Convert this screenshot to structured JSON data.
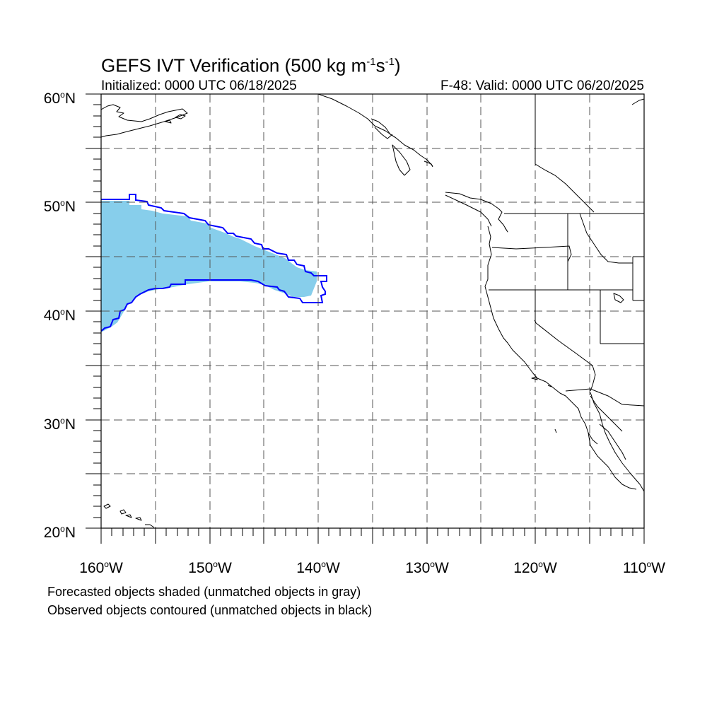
{
  "header": {
    "title_main": "GEFS IVT Verification (500 kg m",
    "title_exp1": "-1",
    "title_mid": "s",
    "title_exp2": "-1",
    "title_end": ")",
    "initialized": "Initialized: 0000 UTC 06/18/2025",
    "valid": "F-48: Valid: 0000 UTC 06/20/2025"
  },
  "axes": {
    "lat_labels": [
      {
        "num": "60",
        "hemi": "N"
      },
      {
        "num": "50",
        "hemi": "N"
      },
      {
        "num": "40",
        "hemi": "N"
      },
      {
        "num": "30",
        "hemi": "N"
      },
      {
        "num": "20",
        "hemi": "N"
      }
    ],
    "lon_labels": [
      {
        "num": "160",
        "hemi": "W"
      },
      {
        "num": "150",
        "hemi": "W"
      },
      {
        "num": "140",
        "hemi": "W"
      },
      {
        "num": "130",
        "hemi": "W"
      },
      {
        "num": "120",
        "hemi": "W"
      },
      {
        "num": "110",
        "hemi": "W"
      }
    ],
    "degree_symbol": "o"
  },
  "map": {
    "lon_range": [
      -160,
      -110
    ],
    "lat_range": [
      20,
      60
    ],
    "grid_style": "dashed",
    "forecast_fill_color": "#87CEEB",
    "observed_contour_color": "#0000FF",
    "coast_color": "#000000"
  },
  "legend": {
    "line1": "Forecasted objects shaded (unmatched objects in gray)",
    "line2": "Observed objects contoured (unmatched objects in black)"
  }
}
